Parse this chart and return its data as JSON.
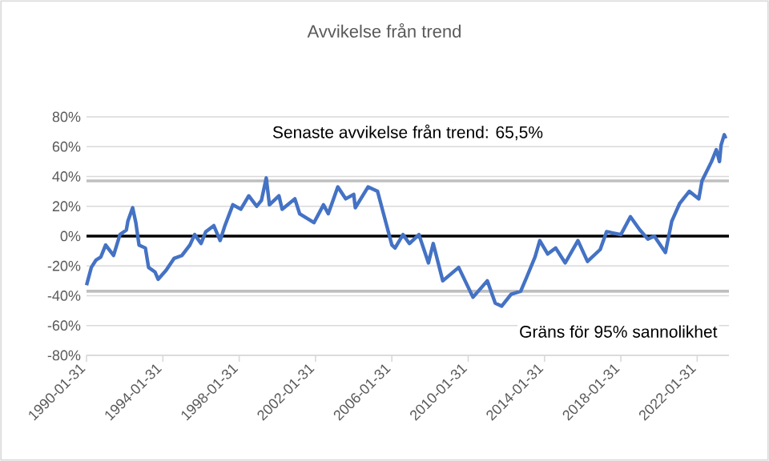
{
  "chart_data": {
    "type": "line",
    "title": "Avvikelse från trend",
    "annotations": [
      "Senaste avvikelse från trend: 65,5%",
      "Gräns för 95% sannolikhet"
    ],
    "x": [
      "1990-02",
      "1990-05",
      "1990-08",
      "1990-11",
      "1991-02",
      "1991-07",
      "1991-11",
      "1992-03",
      "1992-04",
      "1992-07",
      "1992-09",
      "1992-11",
      "1993-03",
      "1993-05",
      "1993-09",
      "1993-11",
      "1994-04",
      "1994-09",
      "1995-02",
      "1995-07",
      "1995-10",
      "1996-02",
      "1996-05",
      "1996-10",
      "1997-02",
      "1997-05",
      "1997-10",
      "1998-03",
      "1998-08",
      "1999-01",
      "1999-04",
      "1999-07",
      "1999-09",
      "2000-03",
      "2000-05",
      "2001-01",
      "2001-04",
      "2002-01",
      "2002-07",
      "2002-10",
      "2003-04",
      "2003-09",
      "2004-02",
      "2004-03",
      "2004-11",
      "2005-05",
      "2005-08",
      "2006-02",
      "2006-04",
      "2006-09",
      "2007-01",
      "2007-07",
      "2008-01",
      "2008-04",
      "2008-10",
      "2009-08",
      "2010-05",
      "2011-02",
      "2011-07",
      "2011-11",
      "2012-05",
      "2012-11",
      "2013-03",
      "2013-08",
      "2013-11",
      "2014-04",
      "2014-09",
      "2015-03",
      "2015-11",
      "2016-05",
      "2017-01",
      "2017-05",
      "2018-02",
      "2018-08",
      "2019-02",
      "2019-07",
      "2019-11",
      "2020-06",
      "2020-10",
      "2021-03",
      "2021-09",
      "2022-03",
      "2022-05",
      "2022-11",
      "2023-02",
      "2023-04",
      "2023-05",
      "2023-07",
      "2023-08"
    ],
    "series": [
      {
        "color": "#4472c4",
        "values": [
          -33,
          -21,
          -16,
          -14,
          -6,
          -13,
          1,
          4,
          10,
          19,
          9,
          -6,
          -8,
          -21,
          -24,
          -29,
          -23,
          -15,
          -13,
          -6,
          1,
          -5,
          3,
          7,
          -3,
          7,
          21,
          18,
          27,
          20,
          24,
          39,
          21,
          27,
          18,
          25,
          15,
          9,
          21,
          15,
          33,
          25,
          28,
          19,
          33,
          30,
          18,
          -6,
          -8,
          1,
          -5,
          1,
          -18,
          -5,
          -30,
          -21,
          -41,
          -30,
          -45,
          -47,
          -39,
          -37,
          -27,
          -14,
          -3,
          -12,
          -8,
          -18,
          -3,
          -17,
          -9,
          3,
          1,
          13,
          4,
          -2,
          0,
          -11,
          10,
          22,
          30,
          25,
          37,
          50,
          58,
          50,
          61,
          68,
          65.5
        ]
      }
    ],
    "xlim": [
      "1990-01-31",
      "2023-09-30"
    ],
    "xticks": [
      "1990-01-31",
      "1994-01-31",
      "1998-01-31",
      "2002-01-31",
      "2006-01-31",
      "2010-01-31",
      "2014-01-31",
      "2018-01-31",
      "2022-01-31"
    ],
    "ylim": [
      -80,
      80
    ],
    "yticks": [
      {
        "value": -80,
        "label": "-80%"
      },
      {
        "value": -60,
        "label": "-60%"
      },
      {
        "value": -40,
        "label": "-40%"
      },
      {
        "value": -20,
        "label": "-20%"
      },
      {
        "value": 0,
        "label": "0%"
      },
      {
        "value": 20,
        "label": "20%"
      },
      {
        "value": 40,
        "label": "40%"
      },
      {
        "value": 60,
        "label": "60%"
      },
      {
        "value": 80,
        "label": "80%"
      }
    ],
    "ref_lines": [
      {
        "axis": "y",
        "value": 37,
        "color": "#bfbfbf"
      },
      {
        "axis": "y",
        "value": -37,
        "color": "#bfbfbf"
      },
      {
        "axis": "y",
        "value": 0,
        "color": "#000000"
      }
    ],
    "grid": "y",
    "marker": "none",
    "line_style": "solid"
  }
}
